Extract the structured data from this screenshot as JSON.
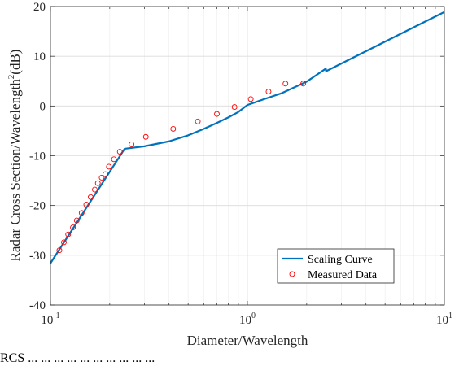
{
  "chart_data": {
    "type": "line",
    "xscale": "log",
    "xlim": [
      0.1,
      10
    ],
    "ylim": [
      -40,
      20
    ],
    "xlabel": "Diameter/Wavelength",
    "ylabel": "Radar Cross Section/Wavelength",
    "ylabel_sup": "2",
    "ylabel_suffix": "(dB)",
    "x_ticks": [
      0.1,
      1,
      10
    ],
    "x_tick_labels": [
      {
        "base": "10",
        "exp": "-1"
      },
      {
        "base": "10",
        "exp": "0"
      },
      {
        "base": "10",
        "exp": "1"
      }
    ],
    "y_ticks": [
      -40,
      -30,
      -20,
      -10,
      0,
      10,
      20
    ],
    "y_tick_labels": [
      "-40",
      "-30",
      "-20",
      "-10",
      "0",
      "10",
      "20"
    ],
    "grid": true,
    "legend_position": "bottom-right",
    "series": [
      {
        "name": "Scaling Curve",
        "style": "line",
        "color": "#0072bd",
        "x": [
          0.1,
          0.238,
          0.3,
          0.4,
          0.5,
          0.6,
          0.7,
          0.8,
          0.9,
          1.0,
          1.2,
          1.5,
          2.0,
          2.5,
          2.51,
          10
        ],
        "y": [
          -31.6,
          -8.6,
          -8.1,
          -7.1,
          -5.9,
          -4.6,
          -3.4,
          -2.3,
          -1.2,
          0.2,
          1.3,
          2.6,
          4.9,
          7.5,
          7.0,
          18.9
        ]
      },
      {
        "name": "Measured Data",
        "style": "marker",
        "color": "#ff0000",
        "x": [
          0.111,
          0.117,
          0.123,
          0.13,
          0.136,
          0.144,
          0.152,
          0.16,
          0.168,
          0.174,
          0.182,
          0.19,
          0.198,
          0.21,
          0.225,
          0.258,
          0.305,
          0.42,
          0.56,
          0.7,
          0.86,
          1.04,
          1.28,
          1.56,
          1.92
        ],
        "y": [
          -29,
          -27.4,
          -25.8,
          -24.4,
          -23,
          -21.5,
          -19.8,
          -18.3,
          -16.8,
          -15.5,
          -14.4,
          -13.7,
          -12.2,
          -10.7,
          -9.2,
          -7.7,
          -6.2,
          -4.6,
          -3.1,
          -1.6,
          -0.2,
          1.4,
          2.9,
          4.5,
          4.5
        ]
      }
    ]
  },
  "caption": "RCS ... ... ... ... ... ... ... ... ... ..."
}
